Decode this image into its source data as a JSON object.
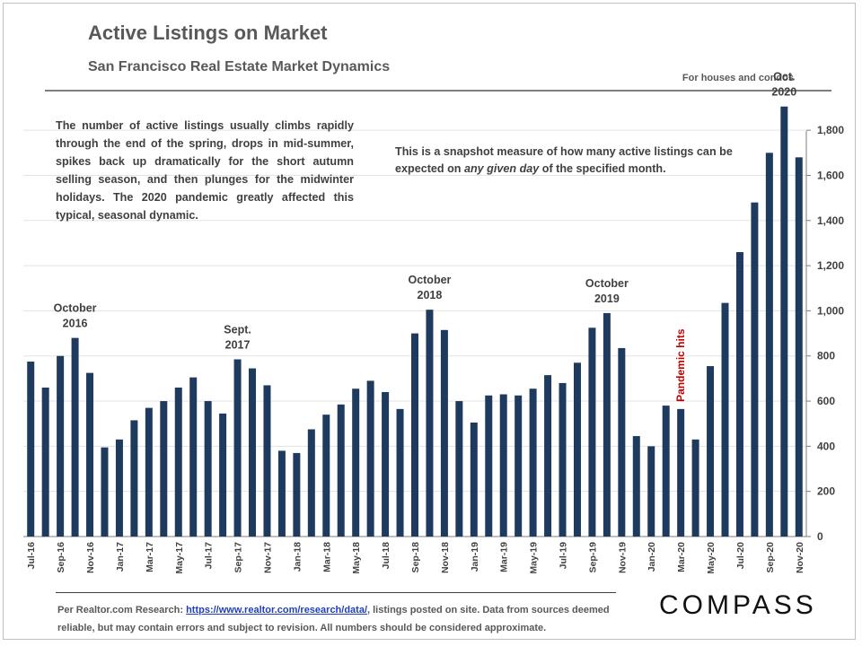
{
  "header": {
    "title": "Active Listings on Market",
    "subtitle": "San Francisco Real Estate Market Dynamics",
    "note": "For houses and condos"
  },
  "description": "The number of active listings usually climbs rapidly through the end of the spring, drops in mid-summer, spikes back up dramatically for the short autumn selling season, and then plunges for the midwinter holidays. The 2020 pandemic greatly affected this typical, seasonal dynamic.",
  "snapshot": {
    "before": "This is a snapshot measure of how many active listings can be expected on ",
    "emphasis": "any given day",
    "after": " of the specified month."
  },
  "footer": {
    "prefix": "Per Realtor.com Research:  ",
    "link": "https://www.realtor.com/research/data/",
    "suffix": ", listings posted on site. Data from sources deemed reliable, but may contain errors and subject to revision.  All numbers should be considered approximate."
  },
  "logo": "COMPASS",
  "colors": {
    "bar": "#1f3a5f",
    "annotation": "#404040",
    "pandemic": "#c00000"
  },
  "chart_data": {
    "type": "bar",
    "title": "Active Listings on Market",
    "categories": [
      "Jul-16",
      "Aug-16",
      "Sep-16",
      "Oct-16",
      "Nov-16",
      "Dec-16",
      "Jan-17",
      "Feb-17",
      "Mar-17",
      "Apr-17",
      "May-17",
      "Jun-17",
      "Jul-17",
      "Aug-17",
      "Sep-17",
      "Oct-17",
      "Nov-17",
      "Dec-17",
      "Jan-18",
      "Feb-18",
      "Mar-18",
      "Apr-18",
      "May-18",
      "Jun-18",
      "Jul-18",
      "Aug-18",
      "Sep-18",
      "Oct-18",
      "Nov-18",
      "Dec-18",
      "Jan-19",
      "Feb-19",
      "Mar-19",
      "Apr-19",
      "May-19",
      "Jun-19",
      "Jul-19",
      "Aug-19",
      "Sep-19",
      "Oct-19",
      "Nov-19",
      "Dec-19",
      "Jan-20",
      "Feb-20",
      "Mar-20",
      "Apr-20",
      "May-20",
      "Jun-20",
      "Jul-20",
      "Aug-20",
      "Sep-20",
      "Oct-20",
      "Nov-20"
    ],
    "tick_labels": [
      "Jul-16",
      "Sep-16",
      "Nov-16",
      "Jan-17",
      "Mar-17",
      "May-17",
      "Jul-17",
      "Sep-17",
      "Nov-17",
      "Jan-18",
      "Mar-18",
      "May-18",
      "Jul-18",
      "Sep-18",
      "Nov-18",
      "Jan-19",
      "Mar-19",
      "May-19",
      "Jul-19",
      "Sep-19",
      "Nov-19",
      "Jan-20",
      "Mar-20",
      "May-20",
      "Jul-20",
      "Sep-20",
      "Nov-20"
    ],
    "values": [
      775,
      660,
      800,
      880,
      725,
      395,
      430,
      515,
      570,
      600,
      660,
      705,
      600,
      545,
      785,
      745,
      670,
      380,
      370,
      475,
      540,
      585,
      655,
      690,
      640,
      565,
      900,
      1005,
      915,
      600,
      505,
      625,
      630,
      625,
      655,
      715,
      680,
      770,
      925,
      990,
      835,
      445,
      400,
      580,
      565,
      430,
      755,
      1035,
      1260,
      1480,
      1700,
      1905,
      1680
    ],
    "ylim": [
      0,
      1900
    ],
    "yticks": [
      0,
      200,
      400,
      600,
      800,
      1000,
      1200,
      1400,
      1600,
      1800
    ],
    "ytick_labels": [
      "0",
      "200",
      "400",
      "600",
      "800",
      "1,000",
      "1,200",
      "1,400",
      "1,600",
      "1,800"
    ],
    "y_axis_position": "right",
    "grid": true,
    "annotations": [
      {
        "text": [
          "October",
          "2016"
        ],
        "index": 3
      },
      {
        "text": [
          "Sept.",
          "2017"
        ],
        "index": 14
      },
      {
        "text": [
          "October",
          "2018"
        ],
        "index": 27
      },
      {
        "text": [
          "October",
          "2019"
        ],
        "index": 39
      },
      {
        "text": [
          "Oct.",
          "2020"
        ],
        "index": 51
      }
    ],
    "event_label": {
      "text": "Pandemic hits",
      "index": 44
    }
  }
}
